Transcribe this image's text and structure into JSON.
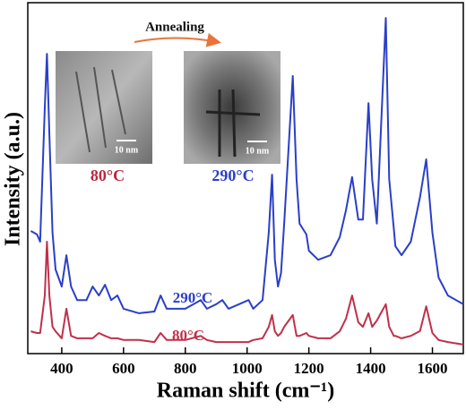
{
  "chart_data": {
    "type": "line",
    "xlabel": "Raman shift (cm⁻¹)",
    "ylabel": "Intensity (a.u.)",
    "x": [
      300,
      320,
      330,
      345,
      352,
      360,
      370,
      380,
      400,
      415,
      430,
      450,
      480,
      500,
      520,
      540,
      560,
      580,
      600,
      650,
      700,
      720,
      740,
      800,
      850,
      870,
      900,
      920,
      940,
      1005,
      1020,
      1050,
      1070,
      1081,
      1090,
      1100,
      1110,
      1120,
      1148,
      1160,
      1170,
      1192,
      1200,
      1230,
      1270,
      1300,
      1320,
      1340,
      1360,
      1375,
      1393,
      1405,
      1420,
      1449,
      1460,
      1475,
      1480,
      1500,
      1530,
      1560,
      1580,
      1600,
      1620,
      1650,
      1700
    ],
    "series": [
      {
        "name": "290°C",
        "color": "#2a3fc9",
        "values": [
          34.8,
          33.8,
          31.7,
          70.4,
          85.8,
          62.6,
          34.3,
          23.7,
          18.8,
          27.8,
          18.8,
          14.9,
          14.9,
          18.8,
          16.2,
          19.3,
          14.9,
          16.2,
          12.4,
          11.1,
          11.6,
          16.2,
          12.4,
          12.4,
          14.9,
          12.4,
          13.7,
          14.9,
          12.4,
          14.9,
          12.4,
          14.9,
          34.3,
          51.0,
          26.5,
          18.8,
          22.7,
          36.9,
          79.4,
          49.7,
          36.9,
          33.8,
          29.1,
          26.5,
          27.8,
          33.0,
          40.7,
          50.3,
          38.1,
          38.1,
          71.6,
          49.7,
          36.9,
          96.1,
          49.7,
          35.6,
          30.4,
          27.8,
          31.7,
          44.6,
          55.4,
          34.3,
          21.4,
          16.2,
          13.7
        ]
      },
      {
        "name": "80°C",
        "color": "#c0304a",
        "values": [
          5.9,
          5.4,
          5.4,
          16.2,
          31.7,
          16.2,
          7.2,
          5.9,
          3.9,
          12.4,
          4.6,
          3.9,
          3.9,
          3.9,
          5.4,
          4.6,
          3.9,
          3.9,
          3.4,
          3.4,
          2.8,
          5.4,
          3.4,
          3.4,
          4.6,
          3.4,
          2.8,
          2.8,
          2.8,
          2.8,
          3.4,
          3.9,
          7.2,
          10.6,
          5.9,
          4.6,
          5.4,
          7.2,
          10.6,
          4.6,
          4.6,
          5.4,
          4.6,
          3.9,
          3.9,
          5.9,
          9.5,
          16.2,
          8.5,
          7.2,
          11.1,
          7.2,
          9.0,
          13.7,
          7.2,
          4.6,
          4.6,
          3.9,
          4.6,
          6.0,
          13.1,
          5.4,
          3.4,
          2.8,
          2.1
        ]
      }
    ],
    "xlim": [
      290,
      1700
    ],
    "xticks": [
      400,
      600,
      800,
      1000,
      1200,
      1400,
      1600
    ],
    "ylim": [
      0,
      100
    ],
    "annotations": {
      "arrow": "Annealing",
      "before_label": "80°C",
      "after_label": "290°C",
      "scale_left": "10 nm",
      "scale_right": "10 nm"
    }
  }
}
